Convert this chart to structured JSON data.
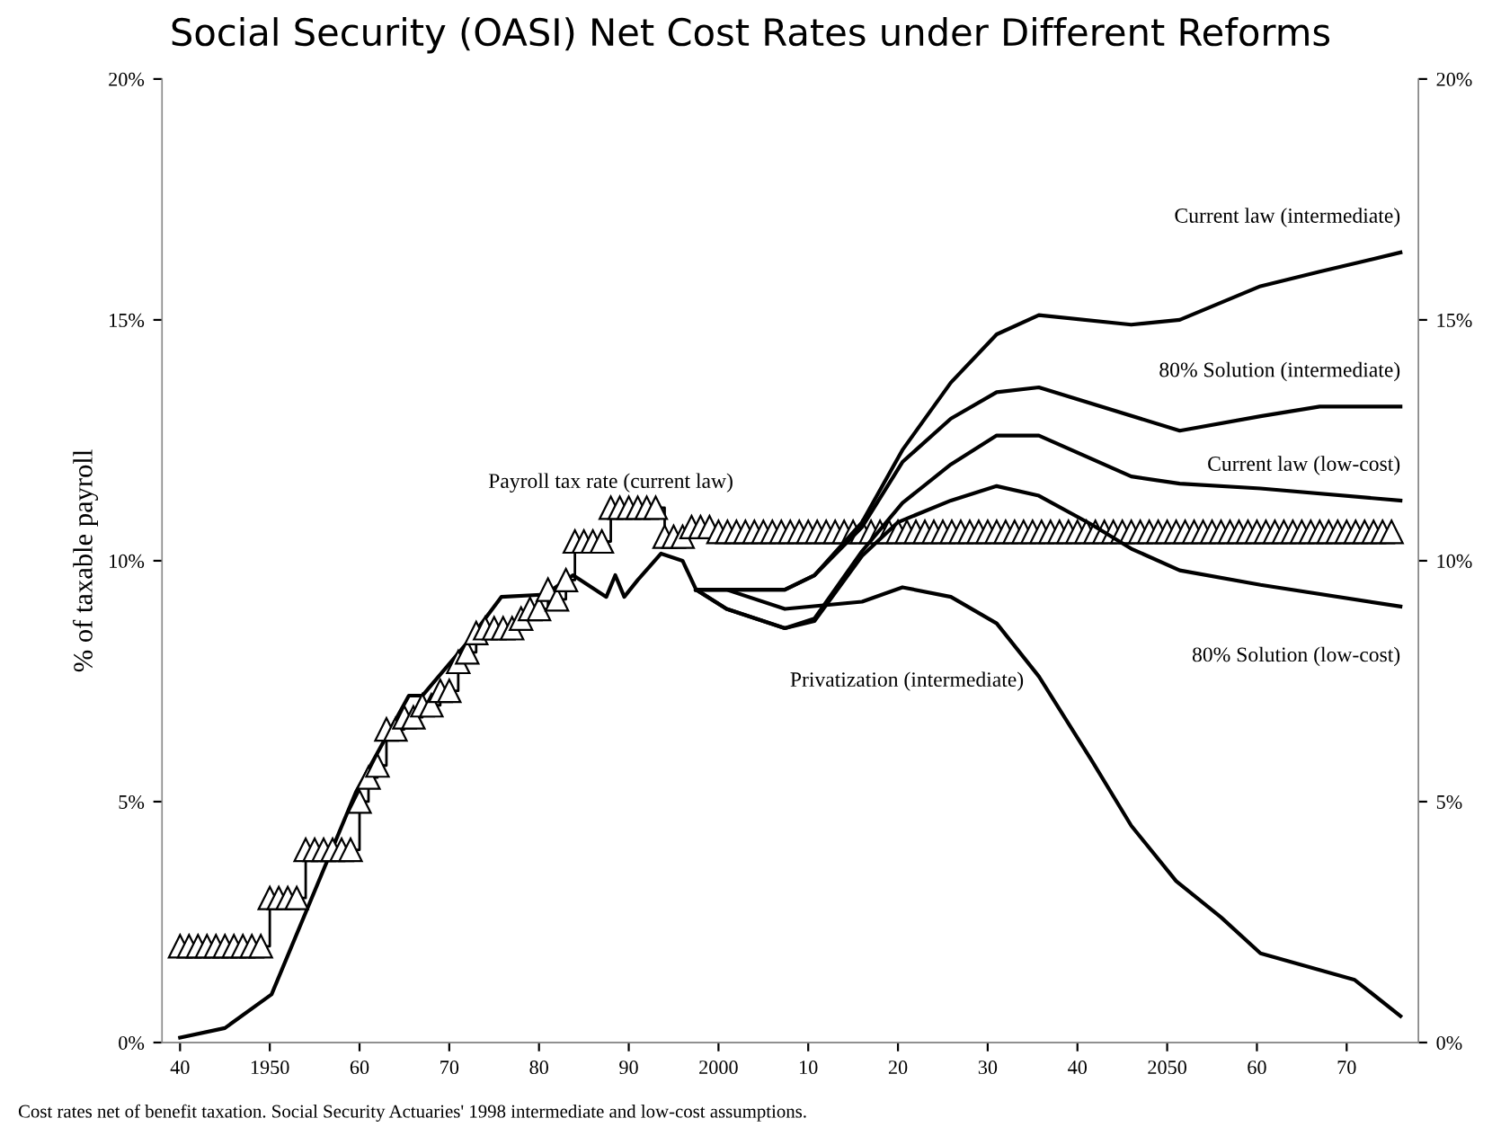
{
  "chart_data": {
    "type": "line",
    "title": "Social Security (OASI) Net Cost Rates under Different Reforms",
    "ylabel": "% of taxable payroll",
    "annotations": [
      "Cost rates net of benefit taxation. Social Security Actuaries' 1998 intermediate and low-cost assumptions."
    ],
    "xlim": [
      1938,
      2078
    ],
    "ylim": [
      0,
      20
    ],
    "y2lim": [
      0,
      20
    ],
    "xticks": [
      {
        "value": 1940,
        "label": "40"
      },
      1950,
      {
        "value": 1960,
        "label": "60"
      },
      {
        "value": 1970,
        "label": "70"
      },
      {
        "value": 1980,
        "label": "80"
      },
      {
        "value": 1990,
        "label": "90"
      },
      2000,
      {
        "value": 2010,
        "label": "10"
      },
      {
        "value": 2020,
        "label": "20"
      },
      {
        "value": 2030,
        "label": "30"
      },
      {
        "value": 2040,
        "label": "40"
      },
      2050,
      {
        "value": 2060,
        "label": "60"
      },
      {
        "value": 2070,
        "label": "70"
      }
    ],
    "yticks": [
      {
        "value": 0,
        "label": "0%"
      },
      {
        "value": 5,
        "label": "5%"
      },
      {
        "value": 10,
        "label": "10%"
      },
      {
        "value": 15,
        "label": "15%"
      },
      {
        "value": 20,
        "label": "20%"
      }
    ],
    "y2ticks": [
      {
        "value": 0,
        "label": "0%"
      },
      {
        "value": 5,
        "label": "5%"
      },
      {
        "value": 10,
        "label": "10%"
      },
      {
        "value": 15,
        "label": "15%"
      },
      {
        "value": 20,
        "label": "20%"
      }
    ],
    "grid": false,
    "legend": false,
    "series": [
      {
        "color": "#000000",
        "x": [
          1940,
          1945,
          1950.2,
          1959.6,
          1965.5,
          1967,
          1972,
          1975.8,
          1980.7,
          1983.8,
          1987.5,
          1988.5,
          1989.5,
          1991,
          1993.6,
          1996,
          1997.5
        ],
        "values": [
          0.1,
          0.3,
          1.0,
          5.2,
          7.2,
          7.2,
          8.3,
          9.25,
          9.3,
          9.7,
          9.25,
          9.7,
          9.25,
          9.6,
          10.15,
          10.0,
          9.4
        ]
      },
      {
        "type": "step",
        "name": "Payroll tax rate (current law)",
        "color": "#000000",
        "marker": "triangle",
        "x": [
          1940,
          1941,
          1942,
          1943,
          1944,
          1945,
          1946,
          1947,
          1948,
          1949,
          1950,
          1951,
          1952,
          1953,
          1954,
          1955,
          1956,
          1957,
          1958,
          1959,
          1960,
          1961,
          1962,
          1963,
          1964,
          1965,
          1966,
          1967,
          1968,
          1969,
          1970,
          1971,
          1972,
          1973,
          1974,
          1975,
          1976,
          1977,
          1978,
          1979,
          1980,
          1981,
          1982,
          1983,
          1984,
          1985,
          1986,
          1987,
          1988,
          1989,
          1990,
          1991,
          1992,
          1993,
          1994,
          1995,
          1996,
          1997,
          1998,
          1999,
          2000,
          2001,
          2002,
          2003,
          2004,
          2005,
          2006,
          2007,
          2008,
          2009,
          2010,
          2011,
          2012,
          2013,
          2014,
          2015,
          2016,
          2017,
          2018,
          2019,
          2020,
          2021,
          2022,
          2023,
          2024,
          2025,
          2026,
          2027,
          2028,
          2029,
          2030,
          2031,
          2032,
          2033,
          2034,
          2035,
          2036,
          2037,
          2038,
          2039,
          2040,
          2041,
          2042,
          2043,
          2044,
          2045,
          2046,
          2047,
          2048,
          2049,
          2050,
          2051,
          2052,
          2053,
          2054,
          2055,
          2056,
          2057,
          2058,
          2059,
          2060,
          2061,
          2062,
          2063,
          2064,
          2065,
          2066,
          2067,
          2068,
          2069,
          2070,
          2071,
          2072,
          2073,
          2074,
          2075
        ],
        "values": [
          2.0,
          2.0,
          2.0,
          2.0,
          2.0,
          2.0,
          2.0,
          2.0,
          2.0,
          2.0,
          3.0,
          3.0,
          3.0,
          3.0,
          4.0,
          4.0,
          4.0,
          4.0,
          4.0,
          4.0,
          5.0,
          5.5,
          5.75,
          6.5,
          6.5,
          6.75,
          6.75,
          7.0,
          7.0,
          7.3,
          7.3,
          7.9,
          8.1,
          8.5,
          8.6,
          8.6,
          8.6,
          8.6,
          8.8,
          9.0,
          9.0,
          9.4,
          9.2,
          9.6,
          10.4,
          10.4,
          10.4,
          10.4,
          11.1,
          11.1,
          11.1,
          11.1,
          11.1,
          11.1,
          10.5,
          10.5,
          10.5,
          10.7,
          10.7,
          10.7,
          10.6,
          10.6,
          10.6,
          10.6,
          10.6,
          10.6,
          10.6,
          10.6,
          10.6,
          10.6,
          10.6,
          10.6,
          10.6,
          10.6,
          10.6,
          10.6,
          10.6,
          10.6,
          10.6,
          10.6,
          10.6,
          10.6,
          10.6,
          10.6,
          10.6,
          10.6,
          10.6,
          10.6,
          10.6,
          10.6,
          10.6,
          10.6,
          10.6,
          10.6,
          10.6,
          10.6,
          10.6,
          10.6,
          10.6,
          10.6,
          10.6,
          10.6,
          10.6,
          10.6,
          10.6,
          10.6,
          10.6,
          10.6,
          10.6,
          10.6,
          10.6,
          10.6,
          10.6,
          10.6,
          10.6,
          10.6,
          10.6,
          10.6,
          10.6,
          10.6,
          10.6,
          10.6,
          10.6,
          10.6,
          10.6,
          10.6,
          10.6,
          10.6,
          10.6,
          10.6,
          10.6,
          10.6,
          10.6,
          10.6,
          10.6,
          10.6
        ]
      },
      {
        "name": "Current law (intermediate)",
        "color": "#000000",
        "x": [
          1997.5,
          2000.9,
          2007.4,
          2010.7,
          2016,
          2020.5,
          2025.9,
          2031,
          2035.7,
          2046,
          2051.4,
          2060.4,
          2067,
          2076
        ],
        "values": [
          9.4,
          9.4,
          9.4,
          9.7,
          10.8,
          12.3,
          13.7,
          14.7,
          15.1,
          14.9,
          15.0,
          15.7,
          16.0,
          16.4
        ]
      },
      {
        "name": "80% Solution (intermediate)",
        "color": "#000000",
        "x": [
          1997.5,
          2000.9,
          2007.4,
          2010.7,
          2016,
          2020.5,
          2025.9,
          2031,
          2035.7,
          2051.4,
          2060.4,
          2067,
          2076
        ],
        "values": [
          9.4,
          9.4,
          9.4,
          9.7,
          10.7,
          12.05,
          12.95,
          13.5,
          13.6,
          12.7,
          13.0,
          13.2,
          13.2
        ]
      },
      {
        "name": "Current law (low-cost)",
        "color": "#000000",
        "x": [
          1997.5,
          2000.9,
          2007.4,
          2010.7,
          2016,
          2020.5,
          2025.9,
          2031,
          2035.7,
          2046,
          2051.4,
          2060.4,
          2076
        ],
        "values": [
          9.4,
          9.0,
          8.6,
          8.8,
          10.2,
          11.2,
          12.0,
          12.6,
          12.6,
          11.75,
          11.6,
          11.5,
          11.25
        ]
      },
      {
        "name": "80% Solution (low-cost)",
        "color": "#000000",
        "x": [
          1997.5,
          2000.9,
          2007.4,
          2010.7,
          2016,
          2020,
          2025.9,
          2031,
          2035.7,
          2041.6,
          2046,
          2051.4,
          2060.4,
          2076
        ],
        "values": [
          9.4,
          9.0,
          8.6,
          8.75,
          10.1,
          10.8,
          11.25,
          11.55,
          11.35,
          10.75,
          10.25,
          9.8,
          9.5,
          9.05
        ]
      },
      {
        "name": "Privatization (intermediate)",
        "color": "#000000",
        "x": [
          1997.5,
          2000.9,
          2007.4,
          2016,
          2020.5,
          2025.9,
          2031,
          2035.7,
          2041.6,
          2046,
          2051,
          2056,
          2060.4,
          2070.9,
          2076
        ],
        "values": [
          9.4,
          9.4,
          9.0,
          9.15,
          9.45,
          9.25,
          8.7,
          7.6,
          5.85,
          4.5,
          3.35,
          2.6,
          1.85,
          1.3,
          0.55
        ]
      }
    ]
  }
}
